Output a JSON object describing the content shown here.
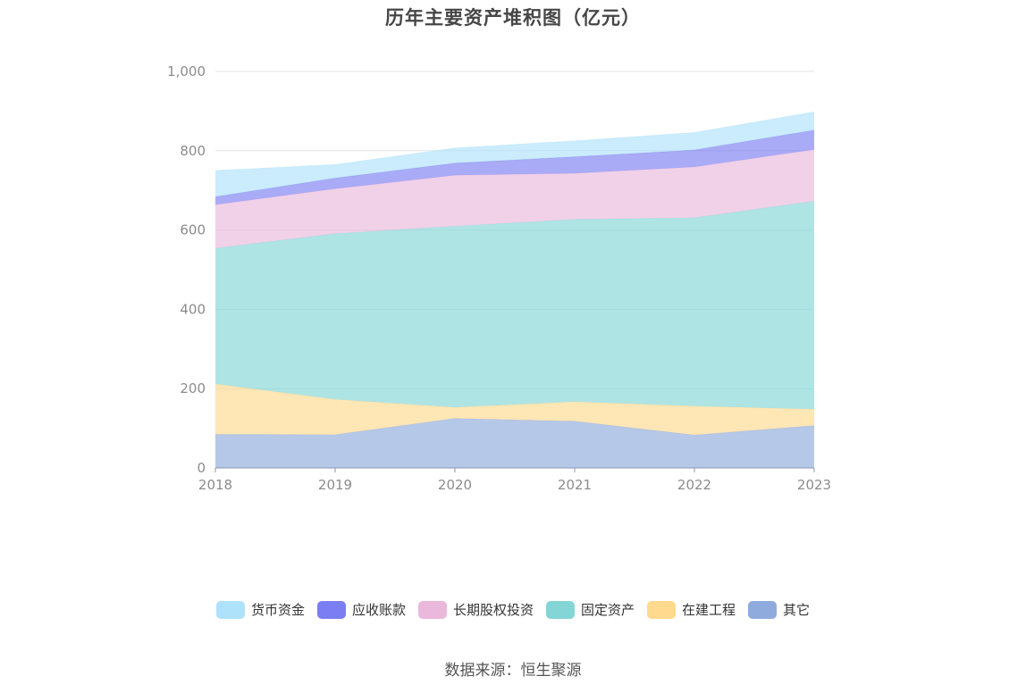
{
  "chart_data": {
    "type": "area",
    "stacked": true,
    "title": "历年主要资产堆积图（亿元）",
    "categories": [
      "2018",
      "2019",
      "2020",
      "2021",
      "2022",
      "2023"
    ],
    "ylim": [
      0,
      1000
    ],
    "yticks": [
      0,
      200,
      400,
      600,
      800,
      1000
    ],
    "ytick_labels": [
      "0",
      "200",
      "400",
      "600",
      "800",
      "1,000"
    ],
    "grid": true,
    "legend_position": "bottom-center",
    "series": [
      {
        "name": "其它",
        "color": "#8faadc",
        "values": [
          85,
          84,
          125,
          118,
          83,
          107
        ]
      },
      {
        "name": "在建工程",
        "color": "#ffd98e",
        "values": [
          127,
          89,
          28,
          49,
          73,
          41
        ]
      },
      {
        "name": "固定资产",
        "color": "#84d6d6",
        "values": [
          342,
          418,
          457,
          460,
          475,
          525
        ]
      },
      {
        "name": "长期股权投资",
        "color": "#eab8db",
        "values": [
          110,
          113,
          128,
          116,
          128,
          130
        ]
      },
      {
        "name": "应收账款",
        "color": "#7b7ef2",
        "values": [
          20,
          27,
          31,
          42,
          43,
          49
        ]
      },
      {
        "name": "货币资金",
        "color": "#aee2fb",
        "values": [
          66,
          34,
          38,
          40,
          44,
          46
        ]
      }
    ],
    "legend_order": [
      "货币资金",
      "应收账款",
      "长期股权投资",
      "固定资产",
      "在建工程",
      "其它"
    ]
  },
  "source_label": "数据来源：恒生聚源"
}
